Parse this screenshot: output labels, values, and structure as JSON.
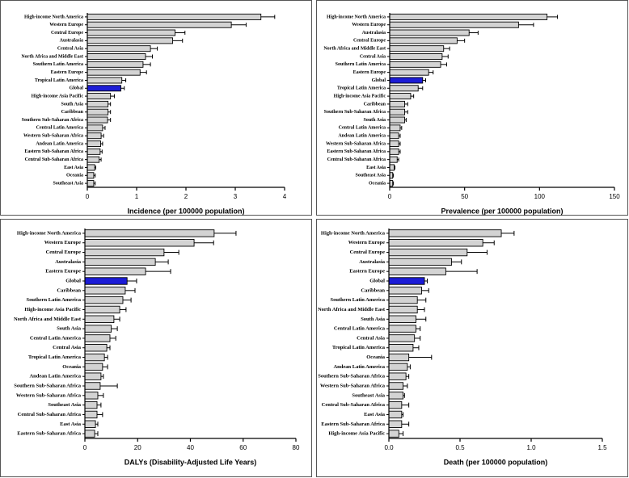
{
  "chart_data": [
    {
      "type": "bar",
      "orientation": "horizontal",
      "xlabel": "Incidence (per 100000 population)",
      "categories": [
        "High-income North America",
        "Western Europe",
        "Central Europe",
        "Australasia",
        "Central Asia",
        "North Africa and Middle East",
        "Southern Latin America",
        "Eastern Europe",
        "Tropical Latin America",
        "Global",
        "High-income Asia Pacific",
        "South Asia",
        "Caribbean",
        "Southern Sub-Saharan Africa",
        "Central Latin America",
        "Western Sub-Saharan Africa",
        "Andean Latin America",
        "Eastern Sub-Saharan Africa",
        "Central Sub-Saharan Africa",
        "East Asia",
        "Oceania",
        "Southeast Asia"
      ],
      "values": [
        3.52,
        2.92,
        1.78,
        1.73,
        1.28,
        1.18,
        1.13,
        1.07,
        0.7,
        0.68,
        0.47,
        0.42,
        0.42,
        0.41,
        0.31,
        0.28,
        0.27,
        0.26,
        0.24,
        0.15,
        0.13,
        0.13
      ],
      "errors": [
        0.28,
        0.3,
        0.2,
        0.2,
        0.14,
        0.14,
        0.15,
        0.13,
        0.08,
        0.07,
        0.08,
        0.05,
        0.05,
        0.06,
        0.05,
        0.05,
        0.04,
        0.04,
        0.04,
        0.02,
        0.03,
        0.03
      ],
      "colors": [
        "#d3d3d3",
        "#d3d3d3",
        "#d3d3d3",
        "#d3d3d3",
        "#d3d3d3",
        "#d3d3d3",
        "#d3d3d3",
        "#d3d3d3",
        "#d3d3d3",
        "#1c1cd6",
        "#d3d3d3",
        "#d3d3d3",
        "#d3d3d3",
        "#d3d3d3",
        "#d3d3d3",
        "#d3d3d3",
        "#d3d3d3",
        "#d3d3d3",
        "#d3d3d3",
        "#d3d3d3",
        "#d3d3d3",
        "#d3d3d3"
      ],
      "xlim": [
        0,
        4
      ],
      "xticks": [
        0,
        1,
        2,
        3,
        4
      ]
    },
    {
      "type": "bar",
      "orientation": "horizontal",
      "xlabel": "Prevalence (per 100000 population)",
      "categories": [
        "High-income North America",
        "Western Europe",
        "Australasia",
        "Central Europe",
        "North Africa and Middle East",
        "Central Asia",
        "Southern Latin America",
        "Eastern Europe",
        "Global",
        "Tropical Latin America",
        "High-income Asia Pacific",
        "Caribbean",
        "Southern Sub-Saharan Africa",
        "South Asia",
        "Central Latin America",
        "Andean Latin America",
        "Western Sub-Saharan Africa",
        "Eastern Sub-Saharan Africa",
        "Central Sub-Saharan Africa",
        "East Asia",
        "Southeast Asia",
        "Oceania"
      ],
      "values": [
        105,
        86,
        53,
        45,
        36,
        35,
        34,
        26,
        22,
        19,
        14,
        10,
        10,
        10,
        7,
        6,
        6,
        6,
        5,
        3,
        2,
        2
      ],
      "errors": [
        7,
        10,
        6,
        5,
        4,
        4,
        4,
        3,
        2,
        3,
        2,
        2,
        2,
        1,
        1,
        1,
        1,
        1,
        1,
        0.5,
        0.5,
        0.5
      ],
      "colors": [
        "#d3d3d3",
        "#d3d3d3",
        "#d3d3d3",
        "#d3d3d3",
        "#d3d3d3",
        "#d3d3d3",
        "#d3d3d3",
        "#d3d3d3",
        "#1c1cd6",
        "#d3d3d3",
        "#d3d3d3",
        "#d3d3d3",
        "#d3d3d3",
        "#d3d3d3",
        "#d3d3d3",
        "#d3d3d3",
        "#d3d3d3",
        "#d3d3d3",
        "#d3d3d3",
        "#d3d3d3",
        "#d3d3d3",
        "#d3d3d3"
      ],
      "xlim": [
        0,
        150
      ],
      "xticks": [
        0,
        50,
        100,
        150
      ]
    },
    {
      "type": "bar",
      "orientation": "horizontal",
      "xlabel": "DALYs (Disability-Adjusted Life Years)",
      "categories": [
        "High-income North America",
        "Western Europe",
        "Central Europe",
        "Australasia",
        "Eastern Europe",
        "Global",
        "Caribbean",
        "Southern Latin America",
        "High-income Asia Pacific",
        "North Africa and Middle East",
        "South Asia",
        "Central Latin America",
        "Central Asia",
        "Tropical Latin America",
        "Oceania",
        "Andean Latin America",
        "Southern Sub-Saharan Africa",
        "Western Sub-Saharan Africa",
        "Southeast Asia",
        "Central Sub-Saharan Africa",
        "East Asia",
        "Eastern Sub-Saharan Africa"
      ],
      "values": [
        49,
        41.4,
        30,
        26.7,
        23,
        16,
        15.3,
        14.4,
        13.2,
        11,
        10,
        9.5,
        8.3,
        7.4,
        6.7,
        6.1,
        5.8,
        4.9,
        4.6,
        4.6,
        4,
        3.7
      ],
      "errors": [
        8.3,
        7.4,
        5.6,
        4.9,
        9.5,
        3.6,
        3.7,
        3.1,
        2.4,
        2.2,
        2.3,
        2.2,
        1.2,
        1.2,
        1.9,
        0.9,
        6.5,
        2.1,
        1.5,
        2.1,
        0.9,
        1.2
      ],
      "colors": [
        "#d3d3d3",
        "#d3d3d3",
        "#d3d3d3",
        "#d3d3d3",
        "#d3d3d3",
        "#1c1cd6",
        "#d3d3d3",
        "#d3d3d3",
        "#d3d3d3",
        "#d3d3d3",
        "#d3d3d3",
        "#d3d3d3",
        "#d3d3d3",
        "#d3d3d3",
        "#d3d3d3",
        "#d3d3d3",
        "#d3d3d3",
        "#d3d3d3",
        "#d3d3d3",
        "#d3d3d3",
        "#d3d3d3",
        "#d3d3d3"
      ],
      "xlim": [
        0,
        80
      ],
      "xticks": [
        0,
        20,
        40,
        60,
        80
      ]
    },
    {
      "type": "bar",
      "orientation": "horizontal",
      "xlabel": "Death (per 100000 population)",
      "categories": [
        "High-income North America",
        "Western Europe",
        "Central Europe",
        "Australasia",
        "Eastern Europe",
        "Global",
        "Caribbean",
        "Southern Latin America",
        "North Africa and Middle East",
        "South Asia",
        "Central Latin America",
        "Central Asia",
        "Tropical Latin America",
        "Oceania",
        "Andean Latin America",
        "Southern Sub-Saharan Africa",
        "Western Sub-Saharan Africa",
        "Southeast Asia",
        "Central Sub-Saharan Africa",
        "East Asia",
        "Eastern Sub-Saharan Africa",
        "High-income Asia Pacific"
      ],
      "values": [
        0.79,
        0.66,
        0.55,
        0.44,
        0.4,
        0.25,
        0.23,
        0.2,
        0.2,
        0.19,
        0.19,
        0.18,
        0.17,
        0.14,
        0.13,
        0.12,
        0.1,
        0.1,
        0.09,
        0.09,
        0.09,
        0.07
      ],
      "errors": [
        0.09,
        0.08,
        0.14,
        0.07,
        0.22,
        0.02,
        0.05,
        0.06,
        0.05,
        0.07,
        0.03,
        0.04,
        0.04,
        0.16,
        0.02,
        0.02,
        0.03,
        0.01,
        0.05,
        0.01,
        0.05,
        0.03
      ],
      "colors": [
        "#d3d3d3",
        "#d3d3d3",
        "#d3d3d3",
        "#d3d3d3",
        "#d3d3d3",
        "#1c1cd6",
        "#d3d3d3",
        "#d3d3d3",
        "#d3d3d3",
        "#d3d3d3",
        "#d3d3d3",
        "#d3d3d3",
        "#d3d3d3",
        "#d3d3d3",
        "#d3d3d3",
        "#d3d3d3",
        "#d3d3d3",
        "#d3d3d3",
        "#d3d3d3",
        "#d3d3d3",
        "#d3d3d3",
        "#d3d3d3"
      ],
      "xlim": [
        0,
        1.5
      ],
      "xticks": [
        {
          "value": 0,
          "label": "0.0"
        },
        {
          "value": 0.5,
          "label": "0.5"
        },
        {
          "value": 1,
          "label": "1.0"
        },
        {
          "value": 1.5,
          "label": "1.5"
        }
      ]
    }
  ]
}
